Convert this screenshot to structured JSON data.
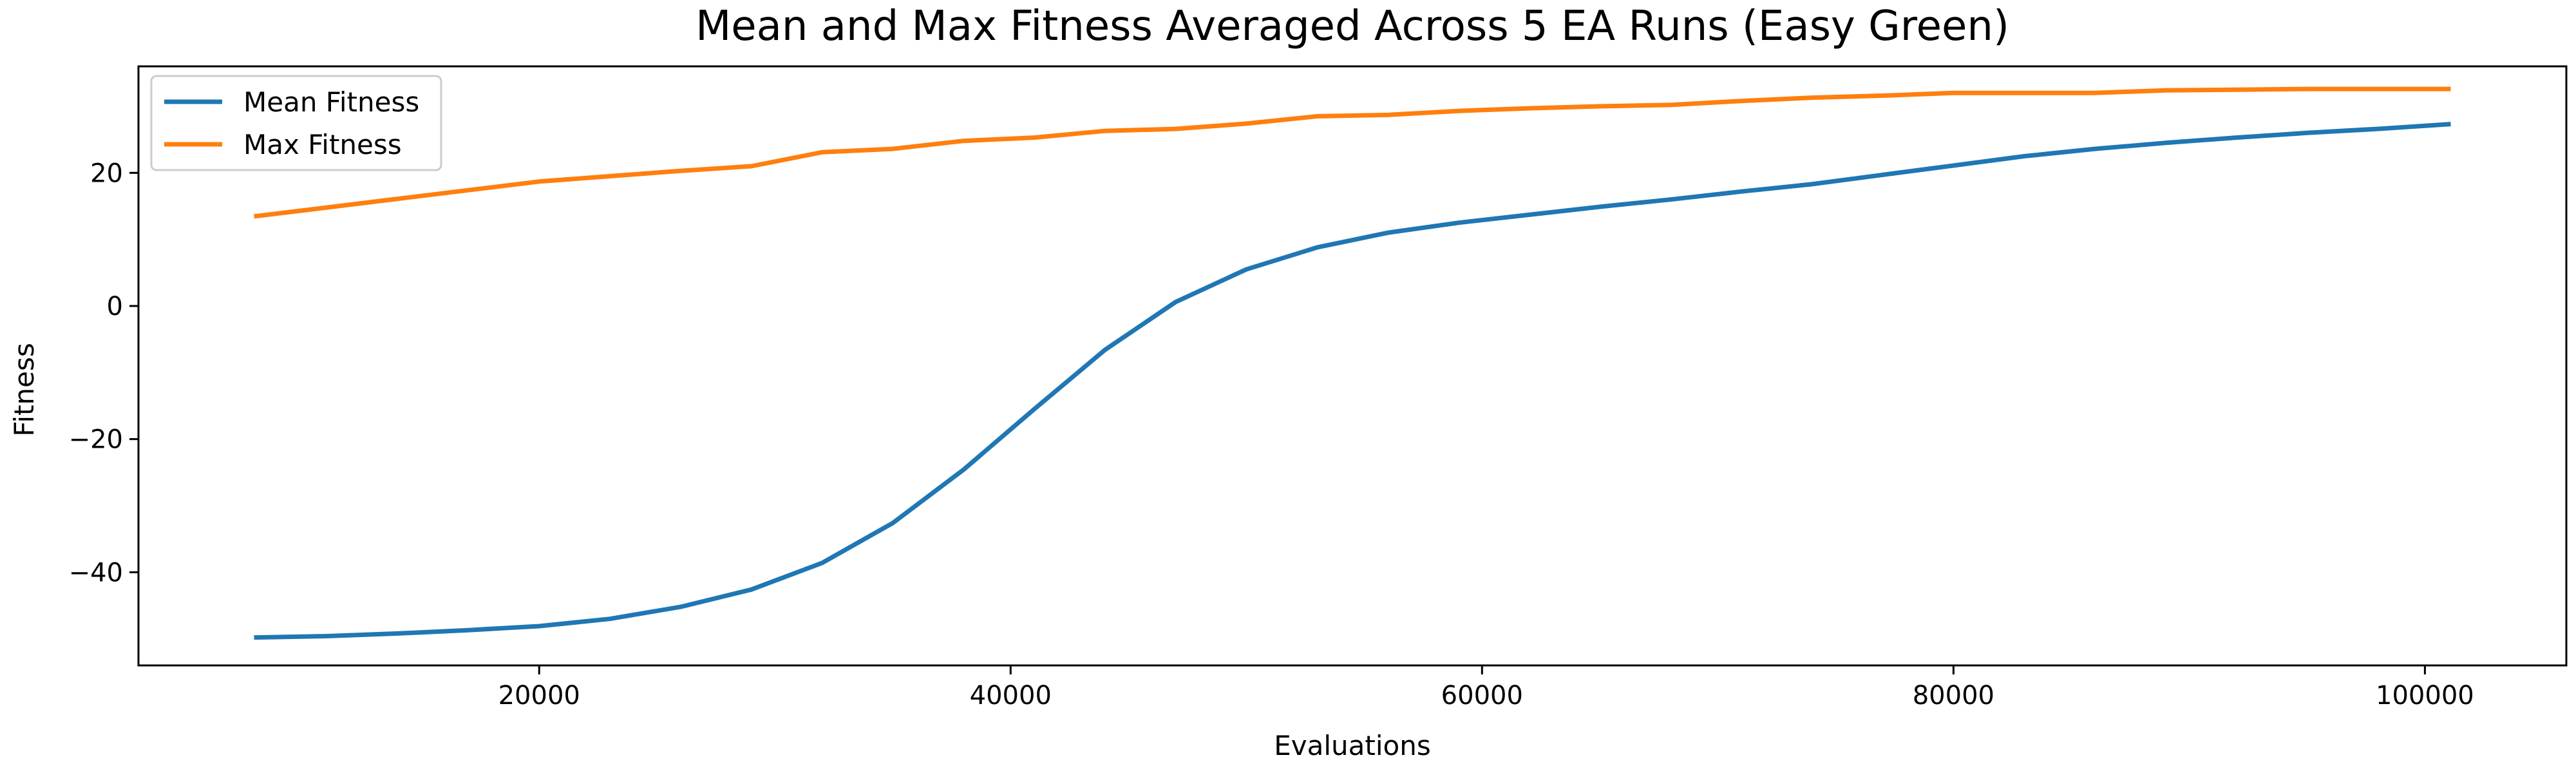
{
  "chart_data": {
    "type": "line",
    "title": "Mean and Max Fitness Averaged Across 5 EA Runs (Easy Green)",
    "xlabel": "Evaluations",
    "ylabel": "Fitness",
    "xlim": [
      3000,
      106000
    ],
    "ylim": [
      -54,
      36
    ],
    "xticks": [
      20000,
      40000,
      60000,
      80000,
      100000
    ],
    "yticks": [
      -40,
      -20,
      0,
      20
    ],
    "xtick_labels": [
      "20000",
      "40000",
      "60000",
      "80000",
      "100000"
    ],
    "ytick_labels": [
      "−40",
      "−20",
      "0",
      "20"
    ],
    "grid": false,
    "legend_position": "upper-left",
    "x": [
      8000,
      11000,
      14000,
      17000,
      20000,
      23000,
      26000,
      29000,
      32000,
      35000,
      38000,
      41000,
      44000,
      47000,
      50000,
      53000,
      56000,
      59000,
      62000,
      65000,
      68000,
      71000,
      74000,
      77000,
      80000,
      83000,
      86000,
      89000,
      92000,
      95000,
      98000,
      101000
    ],
    "series": [
      {
        "name": "Mean Fitness",
        "color": "#1f77b4",
        "values": [
          -49.8,
          -49.6,
          -49.2,
          -48.7,
          -48.1,
          -47.0,
          -45.2,
          -42.6,
          -38.6,
          -32.6,
          -24.6,
          -15.5,
          -6.6,
          0.6,
          5.5,
          8.8,
          11.0,
          12.5,
          13.7,
          14.9,
          16.0,
          17.2,
          18.3,
          19.7,
          21.1,
          22.5,
          23.6,
          24.5,
          25.3,
          26.0,
          26.6,
          27.3
        ]
      },
      {
        "name": "Max Fitness",
        "color": "#ff7f0e",
        "values": [
          13.5,
          14.8,
          16.1,
          17.4,
          18.7,
          19.5,
          20.3,
          21.0,
          23.1,
          23.6,
          24.8,
          25.3,
          26.3,
          26.6,
          27.4,
          28.5,
          28.7,
          29.3,
          29.7,
          30.0,
          30.2,
          30.8,
          31.3,
          31.6,
          32.0,
          32.0,
          32.0,
          32.4,
          32.5,
          32.6,
          32.6,
          32.6
        ]
      }
    ]
  }
}
